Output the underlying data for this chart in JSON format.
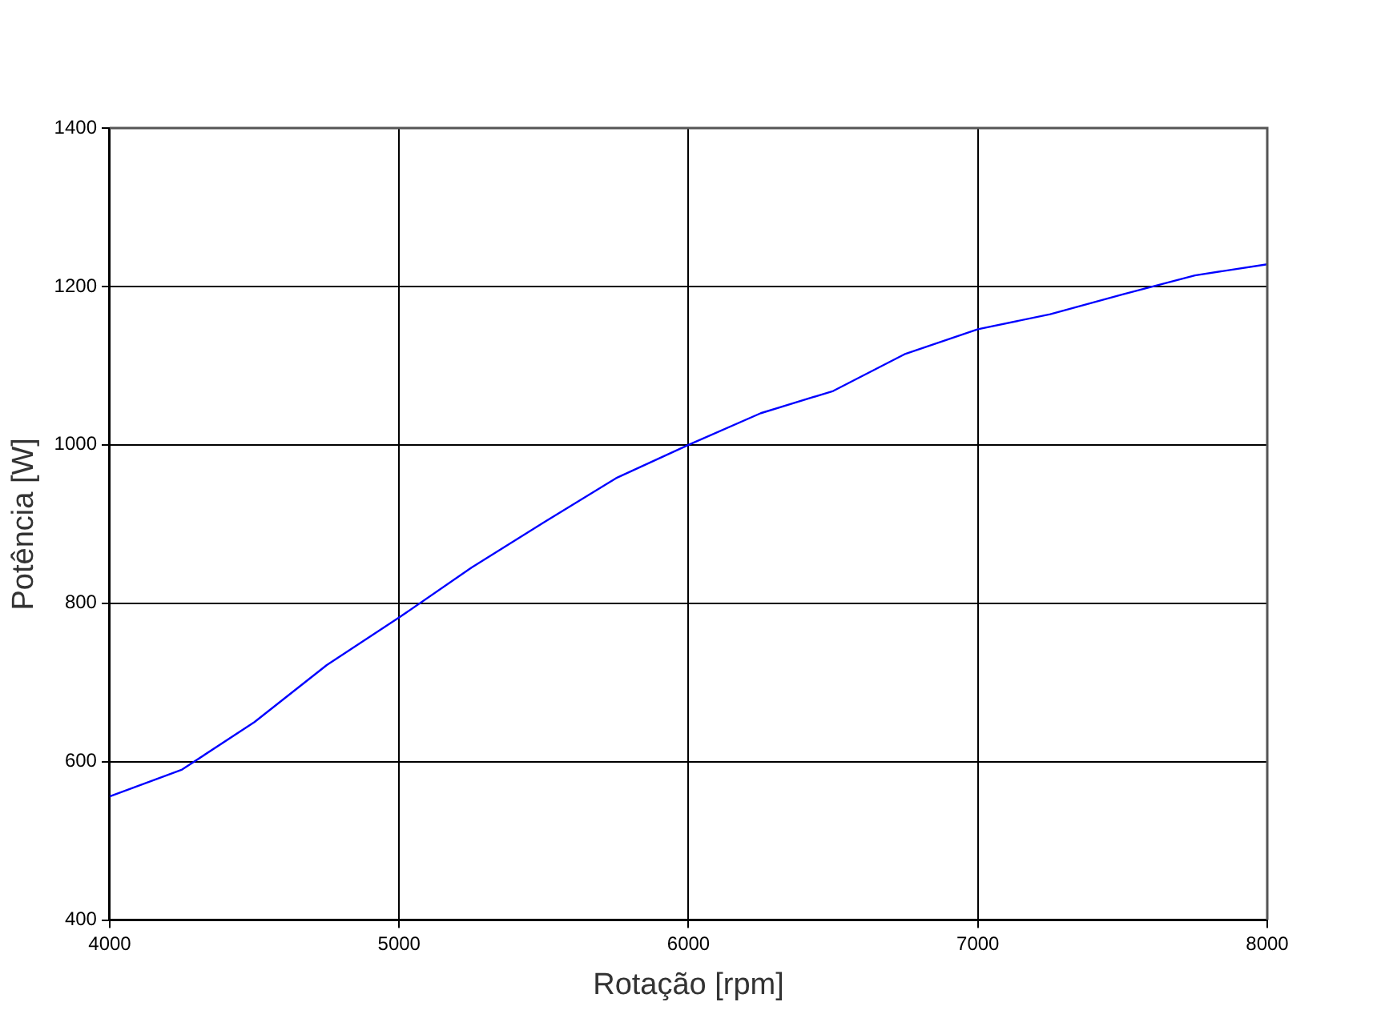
{
  "chart_data": {
    "type": "line",
    "xlabel": "Rotação [rpm]",
    "ylabel": "Potência [W]",
    "x": [
      4000,
      4250,
      4500,
      4750,
      5000,
      5250,
      5500,
      5750,
      6000,
      6250,
      6500,
      6750,
      7000,
      7250,
      7500,
      7750,
      8000
    ],
    "series": [
      {
        "color": "#0000ff",
        "values": [
          556,
          590,
          650,
          722,
          782,
          845,
          902,
          958,
          1000,
          1040,
          1068,
          1115,
          1146,
          1165,
          1190,
          1214,
          1228
        ]
      }
    ],
    "xlim": [
      4000,
      8000
    ],
    "xticks": [
      4000,
      5000,
      6000,
      7000,
      8000
    ],
    "ylim": [
      400,
      1400
    ],
    "yticks": [
      400,
      600,
      800,
      1000,
      1200,
      1400
    ],
    "grid": true,
    "legend": false,
    "marker": "none",
    "line_style": "solid"
  }
}
